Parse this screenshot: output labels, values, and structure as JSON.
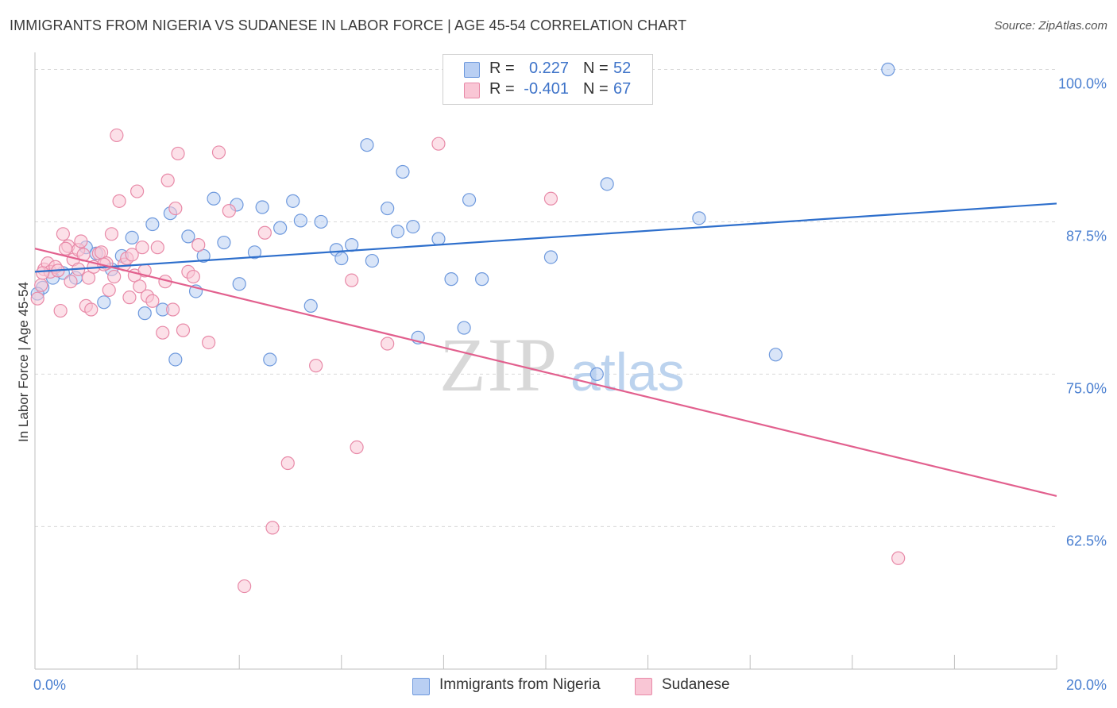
{
  "header": {
    "title": "IMMIGRANTS FROM NIGERIA VS SUDANESE IN LABOR FORCE | AGE 45-54 CORRELATION CHART",
    "source": "Source: ZipAtlas.com"
  },
  "watermark": {
    "zip": "ZIP",
    "atlas": "atlas"
  },
  "legend": {
    "rows": [
      {
        "r_label": "R =",
        "r_value": "0.227",
        "n_label": "N =",
        "n_value": "52"
      },
      {
        "r_label": "R =",
        "r_value": "-0.401",
        "n_label": "N =",
        "n_value": "67"
      }
    ]
  },
  "bottom_legend": {
    "series1": "Immigrants from Nigeria",
    "series2": "Sudanese"
  },
  "colors": {
    "series1_fill": "#b9cff3",
    "series1_stroke": "#6e99dd",
    "series1_line": "#2e6fcc",
    "series2_fill": "#f9c6d5",
    "series2_stroke": "#e88aa8",
    "series2_line": "#e2608e",
    "tick_text": "#4a7fd0",
    "grid": "#d9d9d9"
  },
  "chart_data": {
    "type": "scatter",
    "title": "IMMIGRANTS FROM NIGERIA VS SUDANESE IN LABOR FORCE | AGE 45-54 CORRELATION CHART",
    "xlabel": "",
    "ylabel": "In Labor Force | Age 45-54",
    "xlim": [
      0,
      20
    ],
    "ylim": [
      50.8,
      101.4
    ],
    "x_tick_labels": [
      "0.0%",
      "20.0%"
    ],
    "y_ticks": [
      62.5,
      75.0,
      87.5,
      100.0
    ],
    "y_tick_labels": [
      "62.5%",
      "75.0%",
      "87.5%",
      "100.0%"
    ],
    "grid": true,
    "legend_position": "top-center",
    "series": [
      {
        "name": "Immigrants from Nigeria",
        "r": 0.227,
        "n": 52,
        "trend": {
          "x": [
            0,
            20
          ],
          "y": [
            83.4,
            89.0
          ]
        },
        "points": [
          [
            0.15,
            82.1
          ],
          [
            0.35,
            82.9
          ],
          [
            0.55,
            83.3
          ],
          [
            0.8,
            82.9
          ],
          [
            1.0,
            85.4
          ],
          [
            1.2,
            84.9
          ],
          [
            1.35,
            80.9
          ],
          [
            1.5,
            83.6
          ],
          [
            1.7,
            84.7
          ],
          [
            1.9,
            86.2
          ],
          [
            2.15,
            80.0
          ],
          [
            2.3,
            87.3
          ],
          [
            2.5,
            80.3
          ],
          [
            2.65,
            88.2
          ],
          [
            2.75,
            76.2
          ],
          [
            3.0,
            86.3
          ],
          [
            3.3,
            84.7
          ],
          [
            3.15,
            81.8
          ],
          [
            3.5,
            89.4
          ],
          [
            3.7,
            85.8
          ],
          [
            3.95,
            88.9
          ],
          [
            4.0,
            82.4
          ],
          [
            4.3,
            85.0
          ],
          [
            4.45,
            88.7
          ],
          [
            4.6,
            76.2
          ],
          [
            4.8,
            87.0
          ],
          [
            5.05,
            89.2
          ],
          [
            5.2,
            87.6
          ],
          [
            5.4,
            80.6
          ],
          [
            5.6,
            87.5
          ],
          [
            5.9,
            85.2
          ],
          [
            6.0,
            84.5
          ],
          [
            6.2,
            85.6
          ],
          [
            6.5,
            93.8
          ],
          [
            6.6,
            84.3
          ],
          [
            6.9,
            88.6
          ],
          [
            7.1,
            86.7
          ],
          [
            7.2,
            91.6
          ],
          [
            7.4,
            87.1
          ],
          [
            7.5,
            78.0
          ],
          [
            7.9,
            86.1
          ],
          [
            8.15,
            82.8
          ],
          [
            8.4,
            78.8
          ],
          [
            8.5,
            89.3
          ],
          [
            8.75,
            82.8
          ],
          [
            10.1,
            84.6
          ],
          [
            11.0,
            75.0
          ],
          [
            11.2,
            90.6
          ],
          [
            13.0,
            87.8
          ],
          [
            14.5,
            76.6
          ],
          [
            16.7,
            100.0
          ],
          [
            0.05,
            81.6
          ]
        ]
      },
      {
        "name": "Sudanese",
        "r": -0.401,
        "n": 67,
        "trend": {
          "x": [
            0,
            20
          ],
          "y": [
            85.3,
            65.0
          ]
        },
        "points": [
          [
            0.05,
            81.2
          ],
          [
            0.12,
            82.3
          ],
          [
            0.18,
            83.6
          ],
          [
            0.25,
            84.1
          ],
          [
            0.3,
            83.4
          ],
          [
            0.4,
            83.8
          ],
          [
            0.5,
            80.2
          ],
          [
            0.55,
            86.5
          ],
          [
            0.65,
            85.5
          ],
          [
            0.7,
            82.6
          ],
          [
            0.75,
            84.4
          ],
          [
            0.85,
            85.2
          ],
          [
            0.9,
            85.9
          ],
          [
            0.95,
            84.8
          ],
          [
            1.0,
            80.6
          ],
          [
            1.05,
            82.9
          ],
          [
            1.1,
            80.3
          ],
          [
            1.15,
            83.8
          ],
          [
            1.25,
            84.9
          ],
          [
            1.3,
            85.0
          ],
          [
            1.4,
            84.1
          ],
          [
            1.45,
            81.9
          ],
          [
            1.5,
            86.5
          ],
          [
            1.55,
            83.0
          ],
          [
            1.65,
            89.2
          ],
          [
            1.6,
            94.6
          ],
          [
            1.75,
            84.0
          ],
          [
            1.8,
            84.5
          ],
          [
            1.9,
            84.8
          ],
          [
            1.95,
            83.1
          ],
          [
            2.0,
            90.0
          ],
          [
            2.05,
            82.2
          ],
          [
            2.1,
            85.4
          ],
          [
            2.15,
            83.5
          ],
          [
            2.2,
            81.4
          ],
          [
            2.3,
            81.0
          ],
          [
            2.4,
            85.4
          ],
          [
            2.5,
            78.4
          ],
          [
            2.6,
            90.9
          ],
          [
            2.7,
            80.3
          ],
          [
            2.75,
            88.6
          ],
          [
            2.8,
            93.1
          ],
          [
            2.9,
            78.6
          ],
          [
            3.0,
            83.4
          ],
          [
            3.1,
            83.0
          ],
          [
            3.2,
            85.6
          ],
          [
            3.4,
            77.6
          ],
          [
            3.6,
            93.2
          ],
          [
            3.8,
            88.4
          ],
          [
            4.1,
            57.6
          ],
          [
            4.5,
            86.6
          ],
          [
            4.65,
            62.4
          ],
          [
            4.95,
            67.7
          ],
          [
            5.5,
            75.7
          ],
          [
            6.2,
            82.7
          ],
          [
            6.3,
            69.0
          ],
          [
            6.9,
            77.5
          ],
          [
            7.9,
            93.9
          ],
          [
            10.1,
            89.4
          ],
          [
            16.9,
            59.9
          ],
          [
            0.15,
            83.3
          ],
          [
            0.45,
            83.5
          ],
          [
            0.6,
            85.3
          ],
          [
            0.85,
            83.6
          ],
          [
            1.35,
            84.0
          ],
          [
            2.55,
            82.6
          ],
          [
            1.85,
            81.3
          ]
        ]
      }
    ]
  }
}
